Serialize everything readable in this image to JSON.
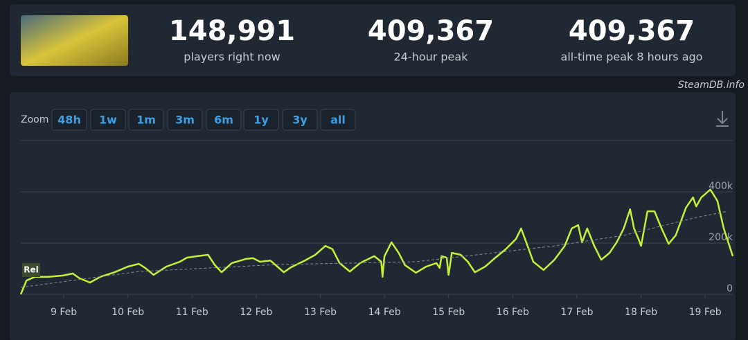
{
  "header": {
    "stats": [
      {
        "value": "148,991",
        "label": "players right now"
      },
      {
        "value": "409,367",
        "label": "24-hour peak"
      },
      {
        "value": "409,367",
        "label": "all-time peak 8 hours ago"
      }
    ],
    "watermark": "SteamDB.info"
  },
  "zoom": {
    "label": "Zoom",
    "buttons": [
      "48h",
      "1w",
      "1m",
      "3m",
      "6m",
      "1y",
      "3y",
      "all"
    ]
  },
  "chart_data": {
    "type": "line",
    "annotations": [
      {
        "text": "Rel"
      }
    ],
    "series": [
      {
        "color": "#c6f135",
        "x": [
          8.33,
          8.42,
          8.55,
          8.76,
          8.98,
          9.14,
          9.25,
          9.41,
          9.57,
          9.79,
          10.0,
          10.17,
          10.27,
          10.4,
          10.6,
          10.81,
          10.92,
          11.08,
          11.25,
          11.35,
          11.46,
          11.62,
          11.84,
          11.95,
          12.06,
          12.22,
          12.33,
          12.43,
          12.54,
          12.76,
          12.92,
          13.08,
          13.19,
          13.3,
          13.46,
          13.62,
          13.84,
          13.95,
          13.97,
          14.0,
          14.11,
          14.22,
          14.32,
          14.49,
          14.65,
          14.81,
          14.86,
          14.89,
          14.97,
          15.0,
          15.05,
          15.19,
          15.3,
          15.41,
          15.57,
          15.73,
          15.89,
          16.05,
          16.13,
          16.21,
          16.32,
          16.48,
          16.65,
          16.81,
          16.92,
          17.02,
          17.08,
          17.16,
          17.27,
          17.38,
          17.51,
          17.62,
          17.73,
          17.83,
          17.89,
          17.96,
          18.0,
          18.1,
          18.21,
          18.32,
          18.43,
          18.54,
          18.7,
          18.81,
          18.86,
          18.94,
          19.08,
          19.19,
          19.29,
          19.43
        ],
        "values": [
          0,
          54000,
          68000,
          68000,
          73000,
          81000,
          62000,
          46000,
          68000,
          86000,
          108000,
          119000,
          103000,
          76000,
          108000,
          127000,
          143000,
          149000,
          154000,
          116000,
          86000,
          122000,
          138000,
          141000,
          127000,
          132000,
          108000,
          86000,
          105000,
          132000,
          154000,
          189000,
          176000,
          122000,
          89000,
          122000,
          149000,
          127000,
          68000,
          149000,
          203000,
          162000,
          114000,
          84000,
          108000,
          122000,
          103000,
          149000,
          143000,
          76000,
          162000,
          154000,
          127000,
          86000,
          108000,
          143000,
          176000,
          216000,
          257000,
          203000,
          127000,
          95000,
          135000,
          189000,
          257000,
          270000,
          203000,
          257000,
          189000,
          135000,
          162000,
          203000,
          257000,
          332000,
          257000,
          216000,
          189000,
          324000,
          324000,
          257000,
          197000,
          230000,
          338000,
          378000,
          343000,
          378000,
          409000,
          365000,
          257000,
          149000
        ]
      },
      {
        "color": "#8a9099",
        "dashed": true,
        "x": [
          8.33,
          10.17,
          12.33,
          14.49,
          16.65,
          17.73,
          18.81,
          19.35
        ],
        "values": [
          27000,
          89000,
          116000,
          127000,
          189000,
          230000,
          297000,
          324000
        ]
      }
    ],
    "xlim": [
      8.33,
      19.43
    ],
    "xticks": [
      {
        "value": 9,
        "label": "9 Feb"
      },
      {
        "value": 10,
        "label": "10 Feb"
      },
      {
        "value": 11,
        "label": "11 Feb"
      },
      {
        "value": 12,
        "label": "12 Feb"
      },
      {
        "value": 13,
        "label": "13 Feb"
      },
      {
        "value": 14,
        "label": "14 Feb"
      },
      {
        "value": 15,
        "label": "15 Feb"
      },
      {
        "value": 16,
        "label": "16 Feb"
      },
      {
        "value": 17,
        "label": "17 Feb"
      },
      {
        "value": 18,
        "label": "18 Feb"
      },
      {
        "value": 19,
        "label": "19 Feb"
      }
    ],
    "ylim": [
      0,
      600000
    ],
    "yticks": [
      0,
      {
        "value": 200000,
        "label": "200k"
      },
      {
        "value": 400000,
        "label": "400k"
      }
    ],
    "grid": true
  }
}
